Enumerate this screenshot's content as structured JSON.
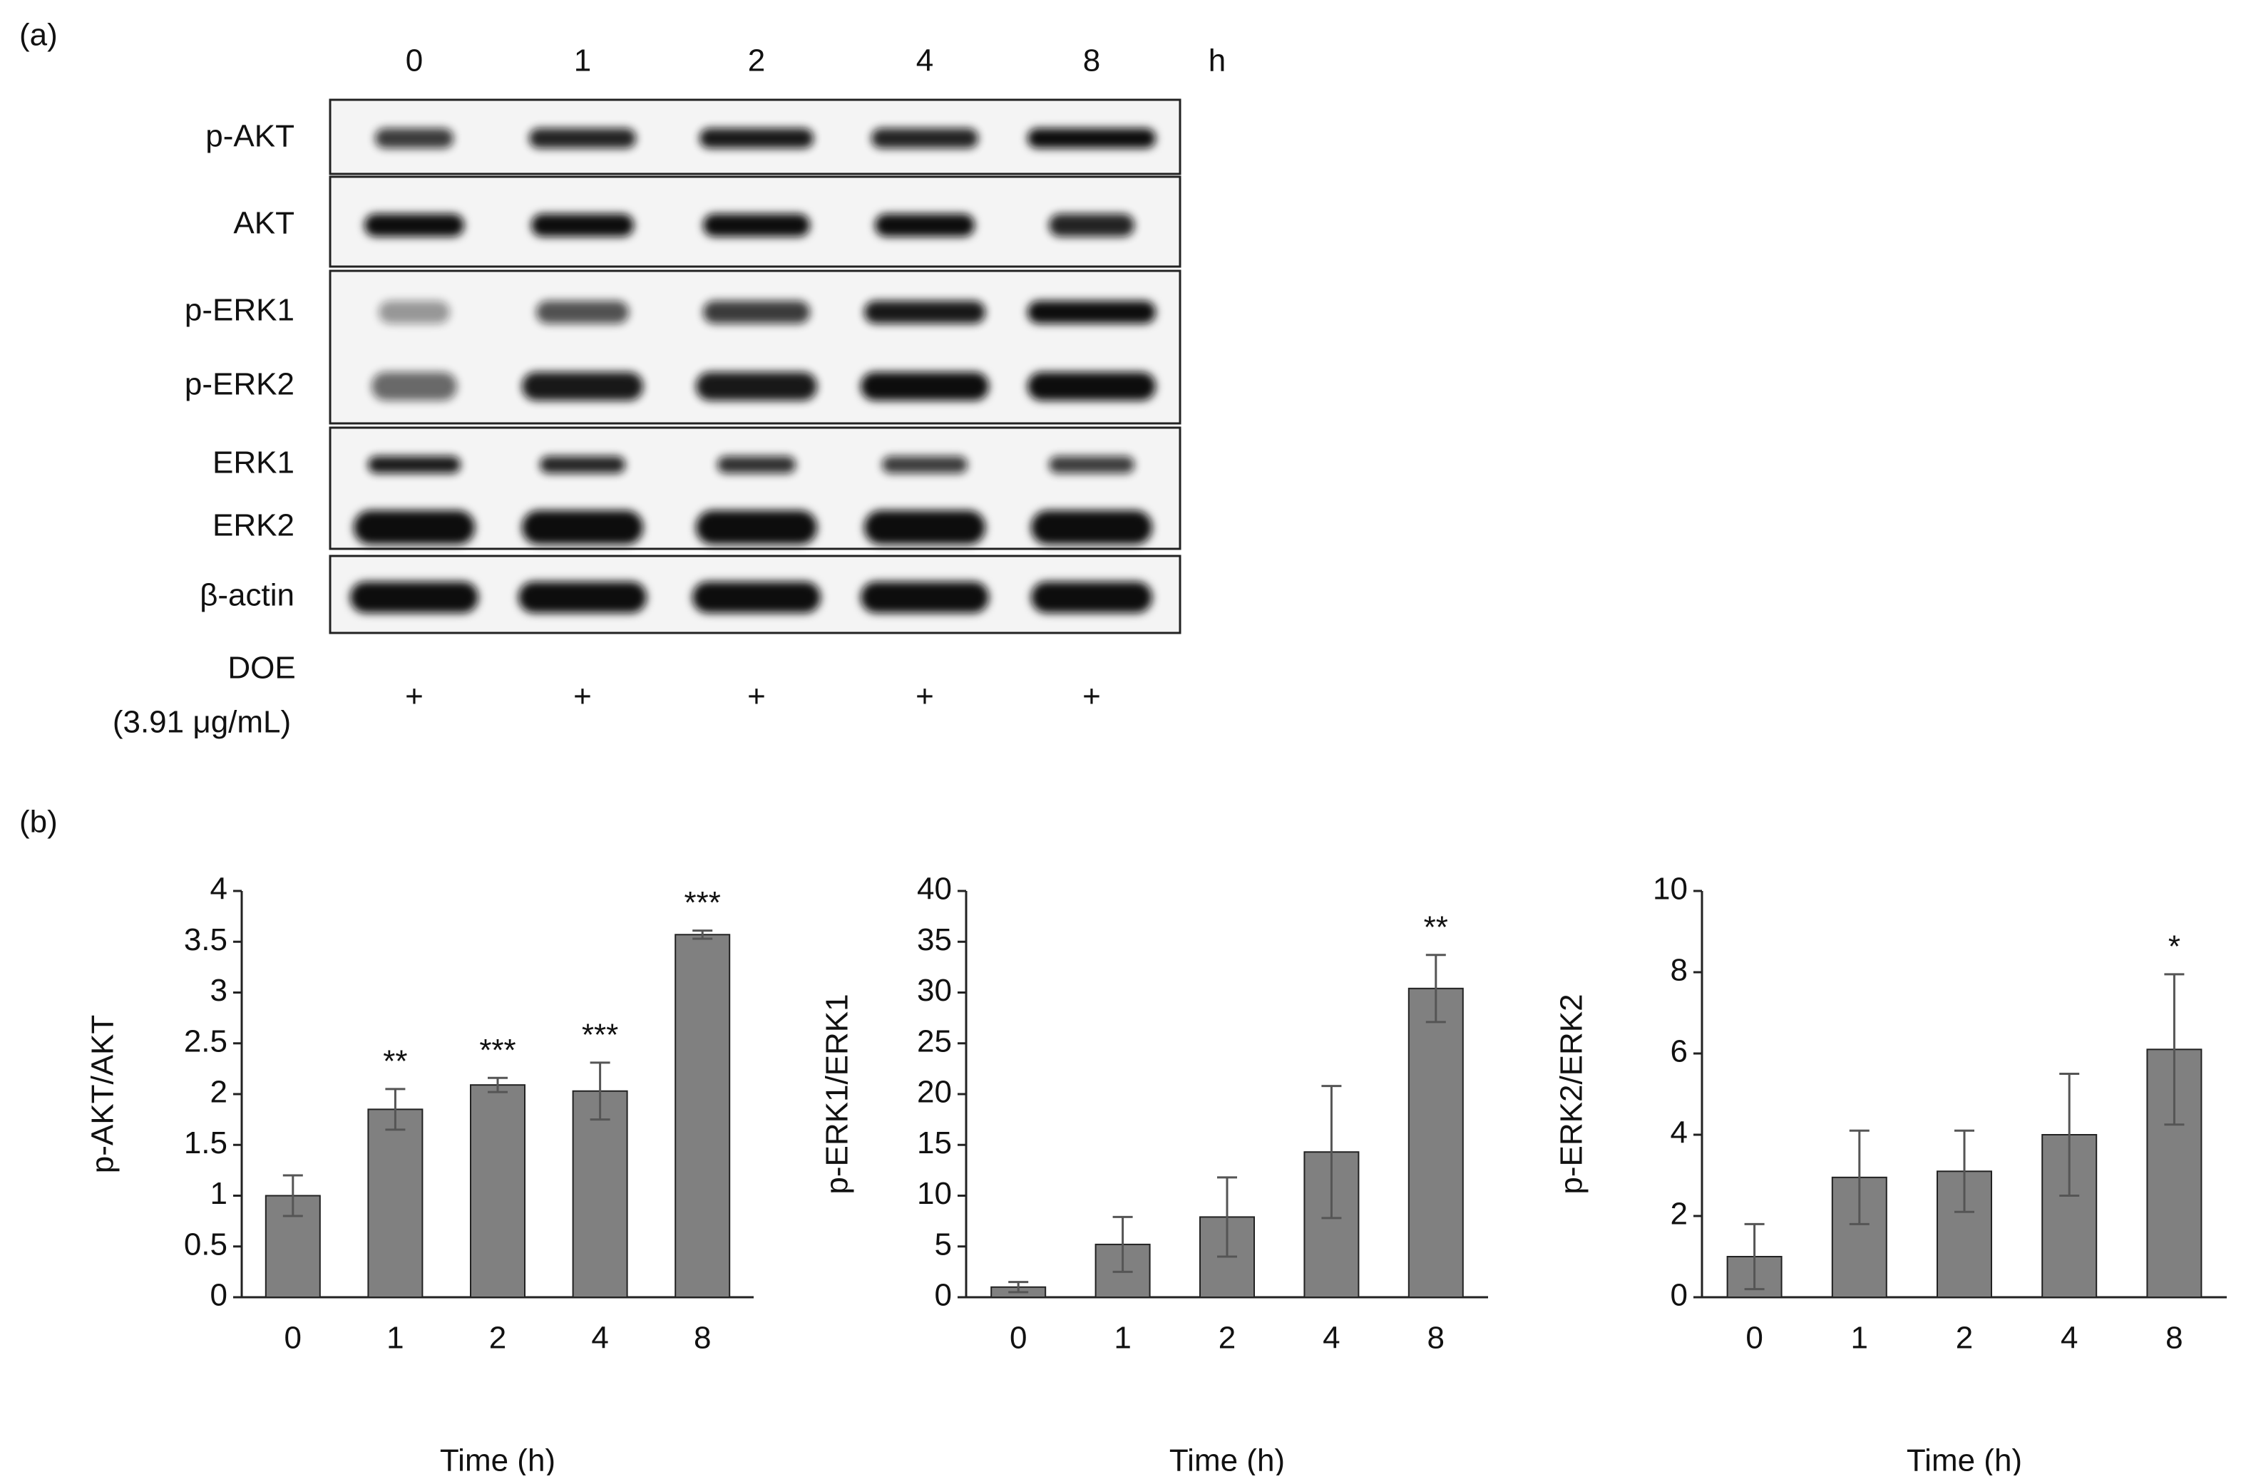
{
  "panel_a": {
    "label": "(a)",
    "lanes": [
      "0",
      "1",
      "2",
      "4",
      "8"
    ],
    "unit": "h",
    "rows": [
      "p-AKT",
      "AKT",
      "p-ERK1",
      "p-ERK2",
      "ERK1",
      "ERK2",
      "β-actin"
    ],
    "treatment": "DOE",
    "dose": "(3.91 μg/mL)",
    "marks": [
      "+",
      "+",
      "+",
      "+",
      "+"
    ]
  },
  "panel_b": {
    "label": "(b)"
  },
  "chart_data": [
    {
      "type": "bar",
      "categories": [
        "0",
        "1",
        "2",
        "4",
        "8"
      ],
      "values": [
        1,
        1.85,
        2.09,
        2.03,
        3.57
      ],
      "errors": [
        0.2,
        0.2,
        0.07,
        0.28,
        0.04
      ],
      "annotations": [
        null,
        "**",
        "***",
        "***",
        "***"
      ],
      "color": "#808080",
      "x_label": "Time (h)",
      "y_label": "p-AKT/AKT",
      "ylim": [
        0,
        4
      ],
      "yticks": [
        0,
        0.5,
        1,
        1.5,
        2,
        2.5,
        3,
        3.5,
        4
      ]
    },
    {
      "type": "bar",
      "categories": [
        "0",
        "1",
        "2",
        "4",
        "8"
      ],
      "values": [
        1,
        5.2,
        7.9,
        14.3,
        30.4
      ],
      "errors": [
        0.5,
        2.7,
        3.9,
        6.5,
        3.3
      ],
      "annotations": [
        null,
        null,
        null,
        null,
        "**"
      ],
      "color": "#808080",
      "x_label": "Time (h)",
      "y_label": "p-ERK1/ERK1",
      "ylim": [
        0,
        40
      ],
      "yticks": [
        0,
        5,
        10,
        15,
        20,
        25,
        30,
        35,
        40
      ]
    },
    {
      "type": "bar",
      "categories": [
        "0",
        "1",
        "2",
        "4",
        "8"
      ],
      "values": [
        1,
        2.95,
        3.1,
        4,
        6.1
      ],
      "errors": [
        0.8,
        1.15,
        1,
        1.5,
        1.85
      ],
      "annotations": [
        null,
        null,
        null,
        null,
        "*"
      ],
      "color": "#808080",
      "x_label": "Time (h)",
      "y_label": "p-ERK2/ERK2",
      "ylim": [
        0,
        10
      ],
      "yticks": [
        0,
        2,
        4,
        6,
        8,
        10
      ]
    }
  ]
}
